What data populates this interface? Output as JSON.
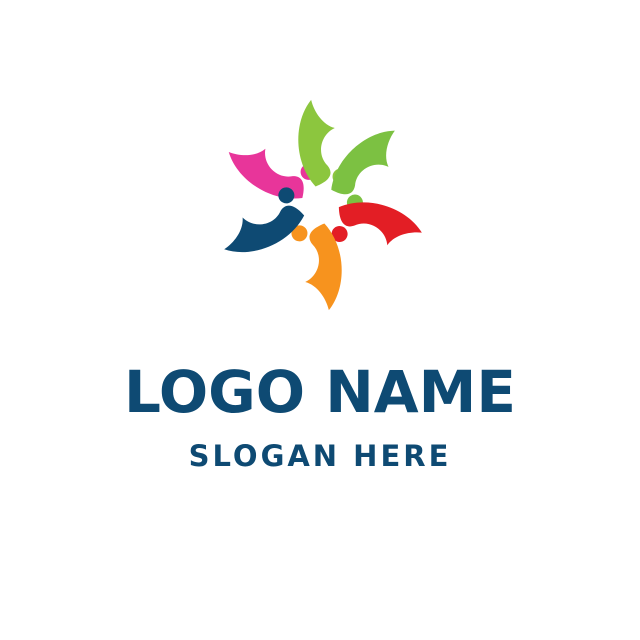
{
  "logo": {
    "name": "LOGO NAME",
    "slogan": "SLOGAN HERE"
  },
  "emblem": {
    "icon": "people-circle-icon",
    "figures": [
      {
        "name": "figure-pink",
        "color": "#e8359a"
      },
      {
        "name": "figure-light-green",
        "color": "#8cc63e"
      },
      {
        "name": "figure-green",
        "color": "#7cc142"
      },
      {
        "name": "figure-red",
        "color": "#e31e25"
      },
      {
        "name": "figure-orange",
        "color": "#f7931e"
      },
      {
        "name": "figure-navy",
        "color": "#0e4a73"
      }
    ]
  },
  "colors": {
    "text": "#0e4a73",
    "background": "#ffffff"
  }
}
